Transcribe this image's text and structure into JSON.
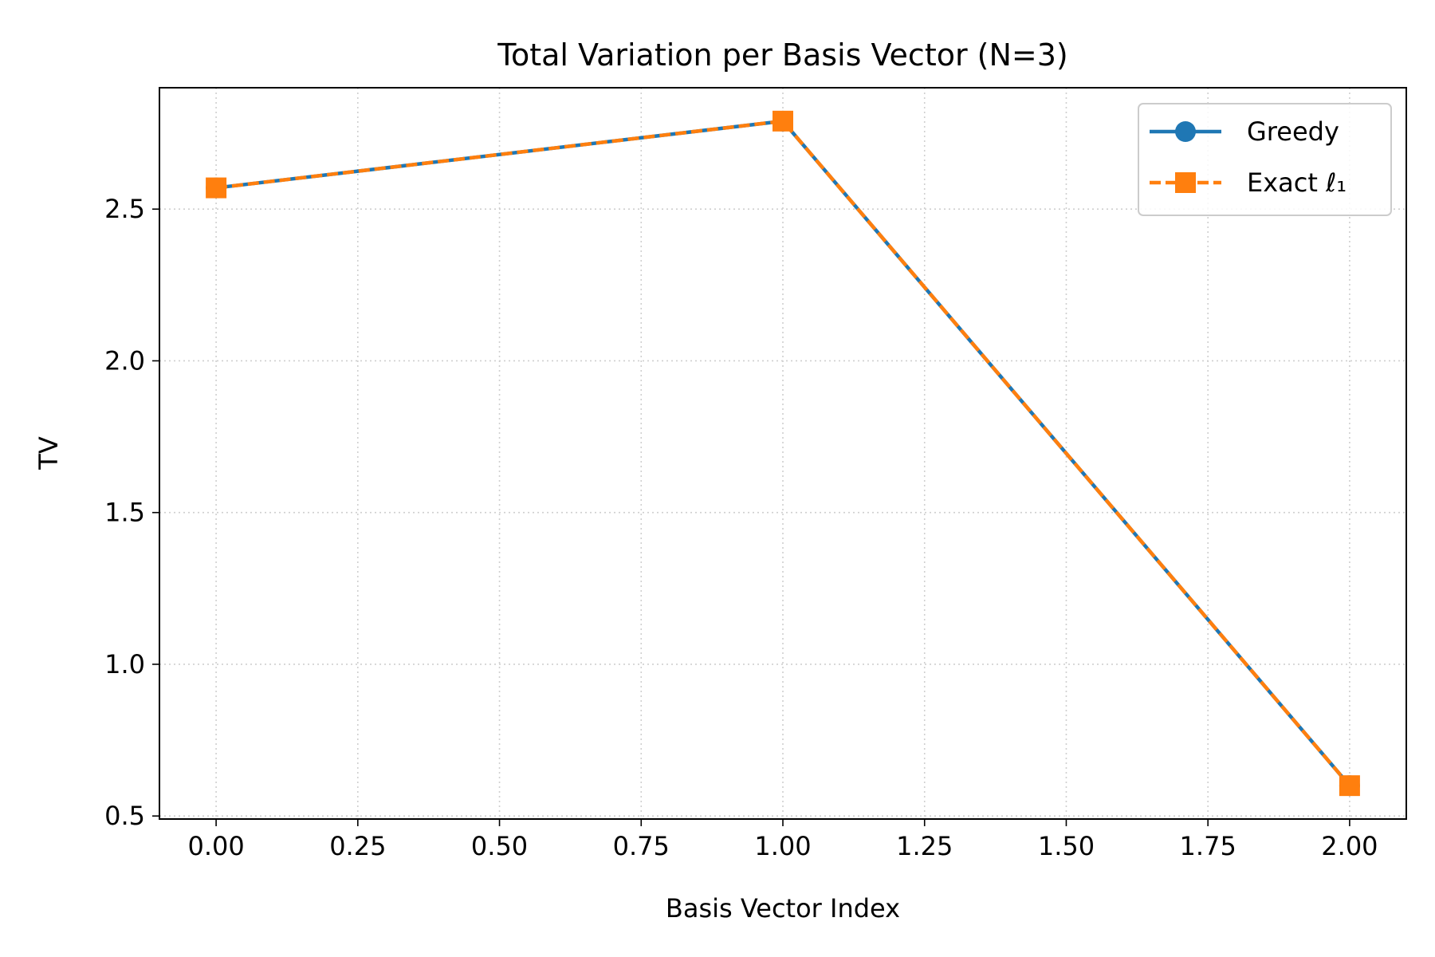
{
  "chart_data": {
    "type": "line",
    "title": "Total Variation per Basis Vector (N=3)",
    "xlabel": "Basis Vector Index",
    "ylabel": "TV",
    "xlim": [
      -0.1,
      2.1
    ],
    "ylim": [
      0.49,
      2.9
    ],
    "x_ticks": [
      "0.00",
      "0.25",
      "0.50",
      "0.75",
      "1.00",
      "1.25",
      "1.50",
      "1.75",
      "2.00"
    ],
    "y_ticks": [
      "0.5",
      "1.0",
      "1.5",
      "2.0",
      "2.5"
    ],
    "grid": true,
    "legend_position": "top-right",
    "series": [
      {
        "name": "Greedy",
        "x": [
          0,
          1,
          2
        ],
        "values": [
          2.57,
          2.79,
          0.6
        ],
        "color": "#1f77b4",
        "marker": "circle",
        "line_style": "solid"
      },
      {
        "name": "Exact ℓ₁",
        "x": [
          0,
          1,
          2
        ],
        "values": [
          2.57,
          2.79,
          0.6
        ],
        "color": "#ff7f0e",
        "marker": "square",
        "line_style": "dashed"
      }
    ]
  }
}
